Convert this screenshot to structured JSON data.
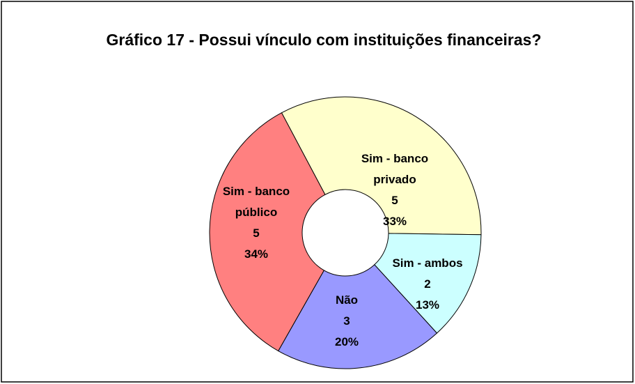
{
  "chart_data": {
    "type": "donut",
    "title": "Gráfico 17 - Possui vínculo com instituições financeiras?",
    "categories": [
      "Sim - banco privado",
      "Sim - ambos",
      "Não",
      "Sim - banco público"
    ],
    "values": [
      33,
      13,
      20,
      34
    ],
    "value_labels": [
      "33%",
      "13%",
      "20%",
      "34%"
    ],
    "counts": [
      5,
      2,
      3,
      5
    ],
    "colors": [
      "#ffffcc",
      "#ccffff",
      "#9999ff",
      "#ff8080"
    ]
  }
}
